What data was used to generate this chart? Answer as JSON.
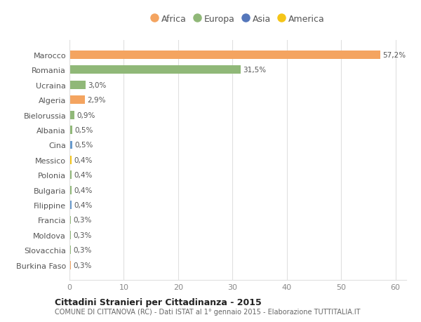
{
  "countries": [
    "Burkina Faso",
    "Slovacchia",
    "Moldova",
    "Francia",
    "Filippine",
    "Bulgaria",
    "Polonia",
    "Messico",
    "Cina",
    "Albania",
    "Bielorussia",
    "Algeria",
    "Ucraina",
    "Romania",
    "Marocco"
  ],
  "values": [
    0.3,
    0.3,
    0.3,
    0.3,
    0.4,
    0.4,
    0.4,
    0.4,
    0.5,
    0.5,
    0.9,
    2.9,
    3.0,
    31.5,
    57.2
  ],
  "labels": [
    "0,3%",
    "0,3%",
    "0,3%",
    "0,3%",
    "0,4%",
    "0,4%",
    "0,4%",
    "0,4%",
    "0,5%",
    "0,5%",
    "0,9%",
    "2,9%",
    "3,0%",
    "31,5%",
    "57,2%"
  ],
  "colors": [
    "#f4a460",
    "#90b878",
    "#90b878",
    "#90b878",
    "#6699cc",
    "#90b878",
    "#90b878",
    "#f5c518",
    "#6699cc",
    "#90b878",
    "#90b878",
    "#f4a460",
    "#90b878",
    "#90b878",
    "#f4a460"
  ],
  "legend": [
    {
      "label": "Africa",
      "color": "#f4a460"
    },
    {
      "label": "Europa",
      "color": "#90b878"
    },
    {
      "label": "Asia",
      "color": "#5577bb"
    },
    {
      "label": "America",
      "color": "#f5c518"
    }
  ],
  "title1": "Cittadini Stranieri per Cittadinanza - 2015",
  "title2": "COMUNE DI CITTANOVA (RC) - Dati ISTAT al 1° gennaio 2015 - Elaborazione TUTTITALIA.IT",
  "xlim": [
    0,
    62
  ],
  "xticks": [
    0,
    10,
    20,
    30,
    40,
    50,
    60
  ],
  "bg_color": "#ffffff",
  "grid_color": "#e0e0e0"
}
